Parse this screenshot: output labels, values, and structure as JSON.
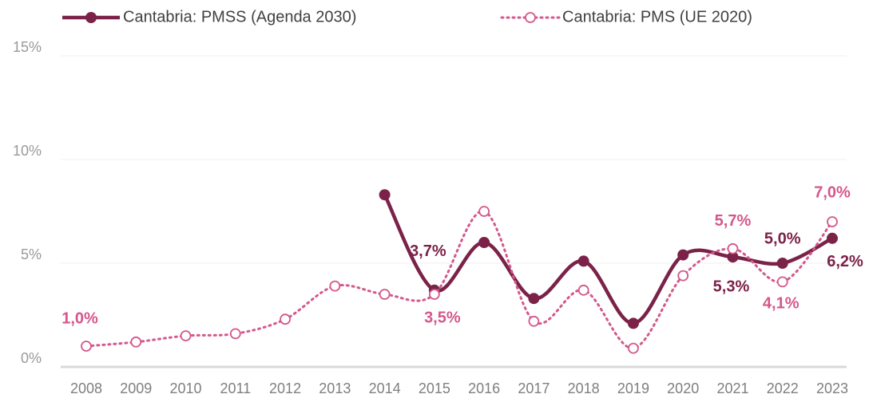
{
  "chart_data": {
    "type": "line",
    "categories": [
      "2008",
      "2009",
      "2010",
      "2011",
      "2012",
      "2013",
      "2014",
      "2015",
      "2016",
      "2017",
      "2018",
      "2019",
      "2020",
      "2021",
      "2022",
      "2023"
    ],
    "series": [
      {
        "name": "Cantabria: PMSS (Agenda 2030)",
        "color": "#7b2248",
        "style": "solid",
        "values": [
          null,
          null,
          null,
          null,
          null,
          null,
          8.3,
          3.7,
          6.0,
          3.3,
          5.1,
          2.1,
          5.4,
          5.3,
          5.0,
          6.2
        ],
        "value_labels": [
          null,
          null,
          null,
          null,
          null,
          null,
          null,
          "3,7%",
          null,
          null,
          null,
          null,
          null,
          "5,3%",
          "5,0%",
          "6,2%"
        ]
      },
      {
        "name": "Cantabria: PMS (UE 2020)",
        "color": "#d4588c",
        "style": "dotted",
        "values": [
          1.0,
          1.2,
          1.5,
          1.6,
          2.3,
          3.9,
          3.5,
          3.5,
          7.5,
          2.2,
          3.7,
          0.9,
          4.4,
          5.7,
          4.1,
          7.0
        ],
        "value_labels": [
          "1,0%",
          null,
          null,
          null,
          null,
          null,
          null,
          "3,5%",
          null,
          null,
          null,
          null,
          null,
          "5,7%",
          "4,1%",
          "7,0%"
        ]
      }
    ],
    "ylim": [
      0,
      15
    ],
    "yticks": [
      {
        "value": 0,
        "label": "0%"
      },
      {
        "value": 5,
        "label": "5%"
      },
      {
        "value": 10,
        "label": "10%"
      },
      {
        "value": 15,
        "label": "15%"
      }
    ],
    "grid": true,
    "legend": "top",
    "smooth": true
  }
}
